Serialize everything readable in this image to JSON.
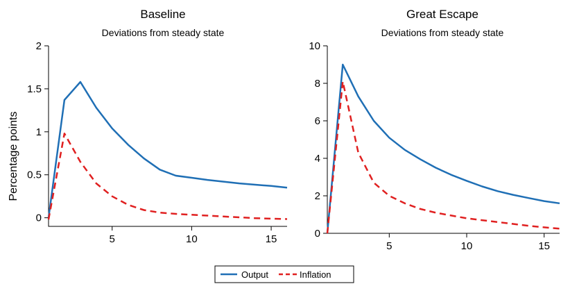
{
  "figure": {
    "ylabel": "Percentage points",
    "legend": [
      {
        "label": "Output",
        "color": "#1f6fb5",
        "style": "solid"
      },
      {
        "label": "Inflation",
        "color": "#e02020",
        "style": "dashed"
      }
    ],
    "legend_position": "bottom-center"
  },
  "chart_data": [
    {
      "type": "line",
      "title": "Baseline",
      "subtitle": "Deviations from steady state",
      "xlim": [
        1,
        16
      ],
      "ylim": [
        -0.1,
        2
      ],
      "xticks": [
        5,
        10,
        15
      ],
      "yticks": [
        0,
        0.5,
        1,
        1.5,
        2
      ],
      "ytick_labels": [
        "0",
        "0.5",
        "1",
        "1.5",
        "2"
      ],
      "grid": false,
      "series": [
        {
          "name": "Output",
          "color": "#1f6fb5",
          "style": "solid",
          "x": [
            1,
            2,
            3,
            4,
            5,
            6,
            7,
            8,
            9,
            10,
            11,
            12,
            13,
            14,
            15,
            16
          ],
          "values": [
            0.0,
            1.37,
            1.58,
            1.28,
            1.04,
            0.85,
            0.69,
            0.56,
            0.49,
            0.465,
            0.44,
            0.42,
            0.4,
            0.385,
            0.37,
            0.35
          ]
        },
        {
          "name": "Inflation",
          "color": "#e02020",
          "style": "dashed",
          "x": [
            1,
            2,
            3,
            4,
            5,
            6,
            7,
            8,
            9,
            10,
            11,
            12,
            13,
            14,
            15,
            16
          ],
          "values": [
            -0.02,
            0.98,
            0.65,
            0.4,
            0.25,
            0.15,
            0.09,
            0.06,
            0.045,
            0.035,
            0.025,
            0.015,
            0.005,
            -0.005,
            -0.01,
            -0.015
          ]
        }
      ]
    },
    {
      "type": "line",
      "title": "Great Escape",
      "subtitle": "Deviations from steady state",
      "xlim": [
        1,
        16
      ],
      "ylim": [
        0,
        10
      ],
      "xticks": [
        5,
        10,
        15
      ],
      "yticks": [
        0,
        2,
        4,
        6,
        8,
        10
      ],
      "ytick_labels": [
        "0",
        "2",
        "4",
        "6",
        "8",
        "10"
      ],
      "grid": false,
      "series": [
        {
          "name": "Output",
          "color": "#1f6fb5",
          "style": "solid",
          "x": [
            1,
            2,
            3,
            4,
            5,
            6,
            7,
            8,
            9,
            10,
            11,
            12,
            13,
            14,
            15,
            16
          ],
          "values": [
            0.0,
            9.0,
            7.3,
            6.0,
            5.1,
            4.45,
            3.95,
            3.5,
            3.12,
            2.8,
            2.5,
            2.25,
            2.05,
            1.88,
            1.72,
            1.6
          ]
        },
        {
          "name": "Inflation",
          "color": "#e02020",
          "style": "dashed",
          "x": [
            1,
            2,
            3,
            4,
            5,
            6,
            7,
            8,
            9,
            10,
            11,
            12,
            13,
            14,
            15,
            16
          ],
          "values": [
            0.0,
            8.1,
            4.3,
            2.7,
            2.0,
            1.6,
            1.3,
            1.1,
            0.95,
            0.8,
            0.7,
            0.6,
            0.5,
            0.4,
            0.32,
            0.25
          ]
        }
      ]
    }
  ]
}
